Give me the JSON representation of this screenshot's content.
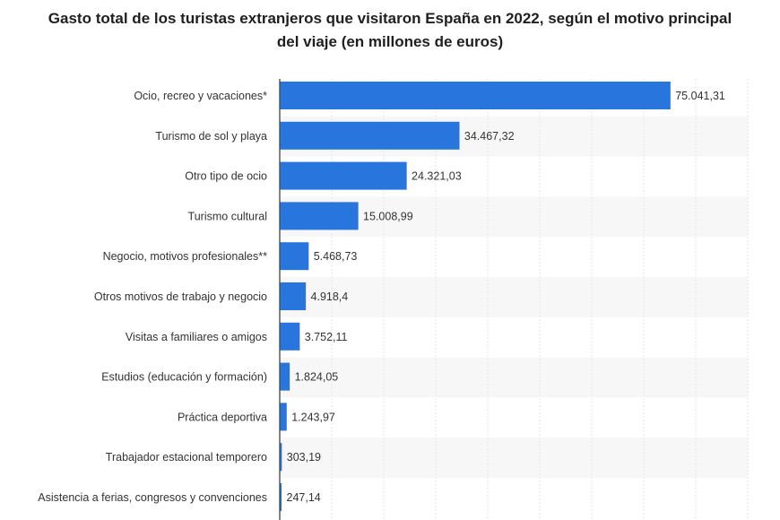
{
  "chart_data": {
    "type": "bar",
    "orientation": "horizontal",
    "title": "Gasto total de los turistas extranjeros que visitaron España en 2022, según el motivo principal del viaje (en millones de euros)",
    "xlabel": "",
    "ylabel": "",
    "categories": [
      "Ocio, recreo y vacaciones*",
      "Turismo de sol y playa",
      "Otro tipo de ocio",
      "Turismo cultural",
      "Negocio, motivos profesionales**",
      "Otros motivos de trabajo y negocio",
      "Visitas a familiares o amigos",
      "Estudios (educación y formación)",
      "Práctica deportiva",
      "Trabajador estacional temporero",
      "Asistencia a ferias, congresos y convenciones"
    ],
    "values": [
      75041.31,
      34467.32,
      24321.03,
      15008.99,
      5468.73,
      4918.4,
      3752.11,
      1824.05,
      1243.97,
      303.19,
      247.14
    ],
    "value_labels": [
      "75.041,31",
      "34.467,32",
      "24.321,03",
      "15.008,99",
      "5.468,73",
      "4.918,4",
      "3.752,11",
      "1.824,05",
      "1.243,97",
      "303,19",
      "247,14"
    ],
    "xlim": [
      0,
      90000
    ],
    "grid": true,
    "bar_color": "#2876dd"
  }
}
